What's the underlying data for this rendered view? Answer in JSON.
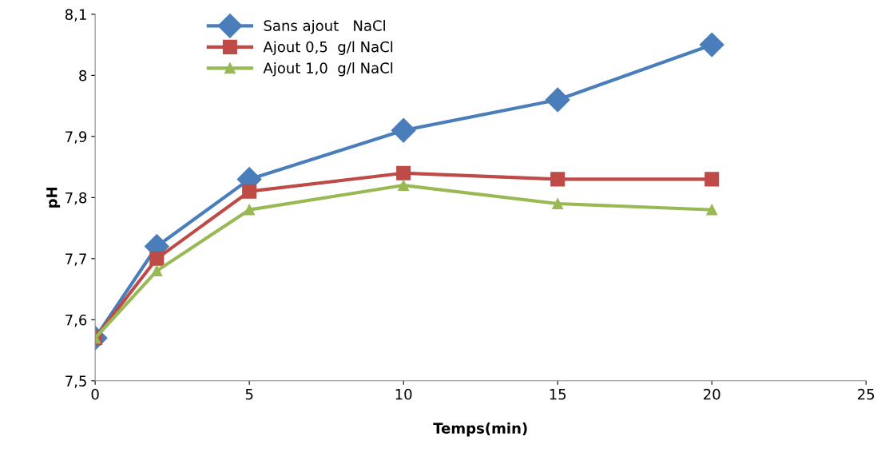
{
  "chart_data": {
    "type": "line",
    "xlabel": "Temps(min)",
    "ylabel": "pH",
    "x": [
      0,
      2,
      5,
      10,
      15,
      20
    ],
    "series": [
      {
        "name": "Sans ajout   NaCl",
        "color": "#4a7ebb",
        "marker": "diamond",
        "values": [
          7.57,
          7.72,
          7.83,
          7.91,
          7.96,
          8.05
        ]
      },
      {
        "name": "Ajout 0,5  g/l NaCl",
        "color": "#be4b48",
        "marker": "square",
        "values": [
          7.57,
          7.7,
          7.81,
          7.84,
          7.83,
          7.83
        ]
      },
      {
        "name": "Ajout 1,0  g/l NaCl",
        "color": "#98b954",
        "marker": "triangle",
        "values": [
          7.57,
          7.68,
          7.78,
          7.82,
          7.79,
          7.78
        ]
      }
    ],
    "xlim": [
      0,
      25
    ],
    "xticks": [
      0,
      5,
      10,
      15,
      20,
      25
    ],
    "ylim": [
      7.5,
      8.1
    ],
    "yticks": [
      {
        "value": 7.5,
        "label": "7,5"
      },
      {
        "value": 7.6,
        "label": "7,6"
      },
      {
        "value": 7.7,
        "label": "7,7"
      },
      {
        "value": 7.8,
        "label": "7,8"
      },
      {
        "value": 7.9,
        "label": "7,9"
      },
      {
        "value": 8,
        "label": "8"
      },
      {
        "value": 8.1,
        "label": "8,1"
      }
    ],
    "grid": false,
    "legend": "top left",
    "line_style": "solid"
  }
}
